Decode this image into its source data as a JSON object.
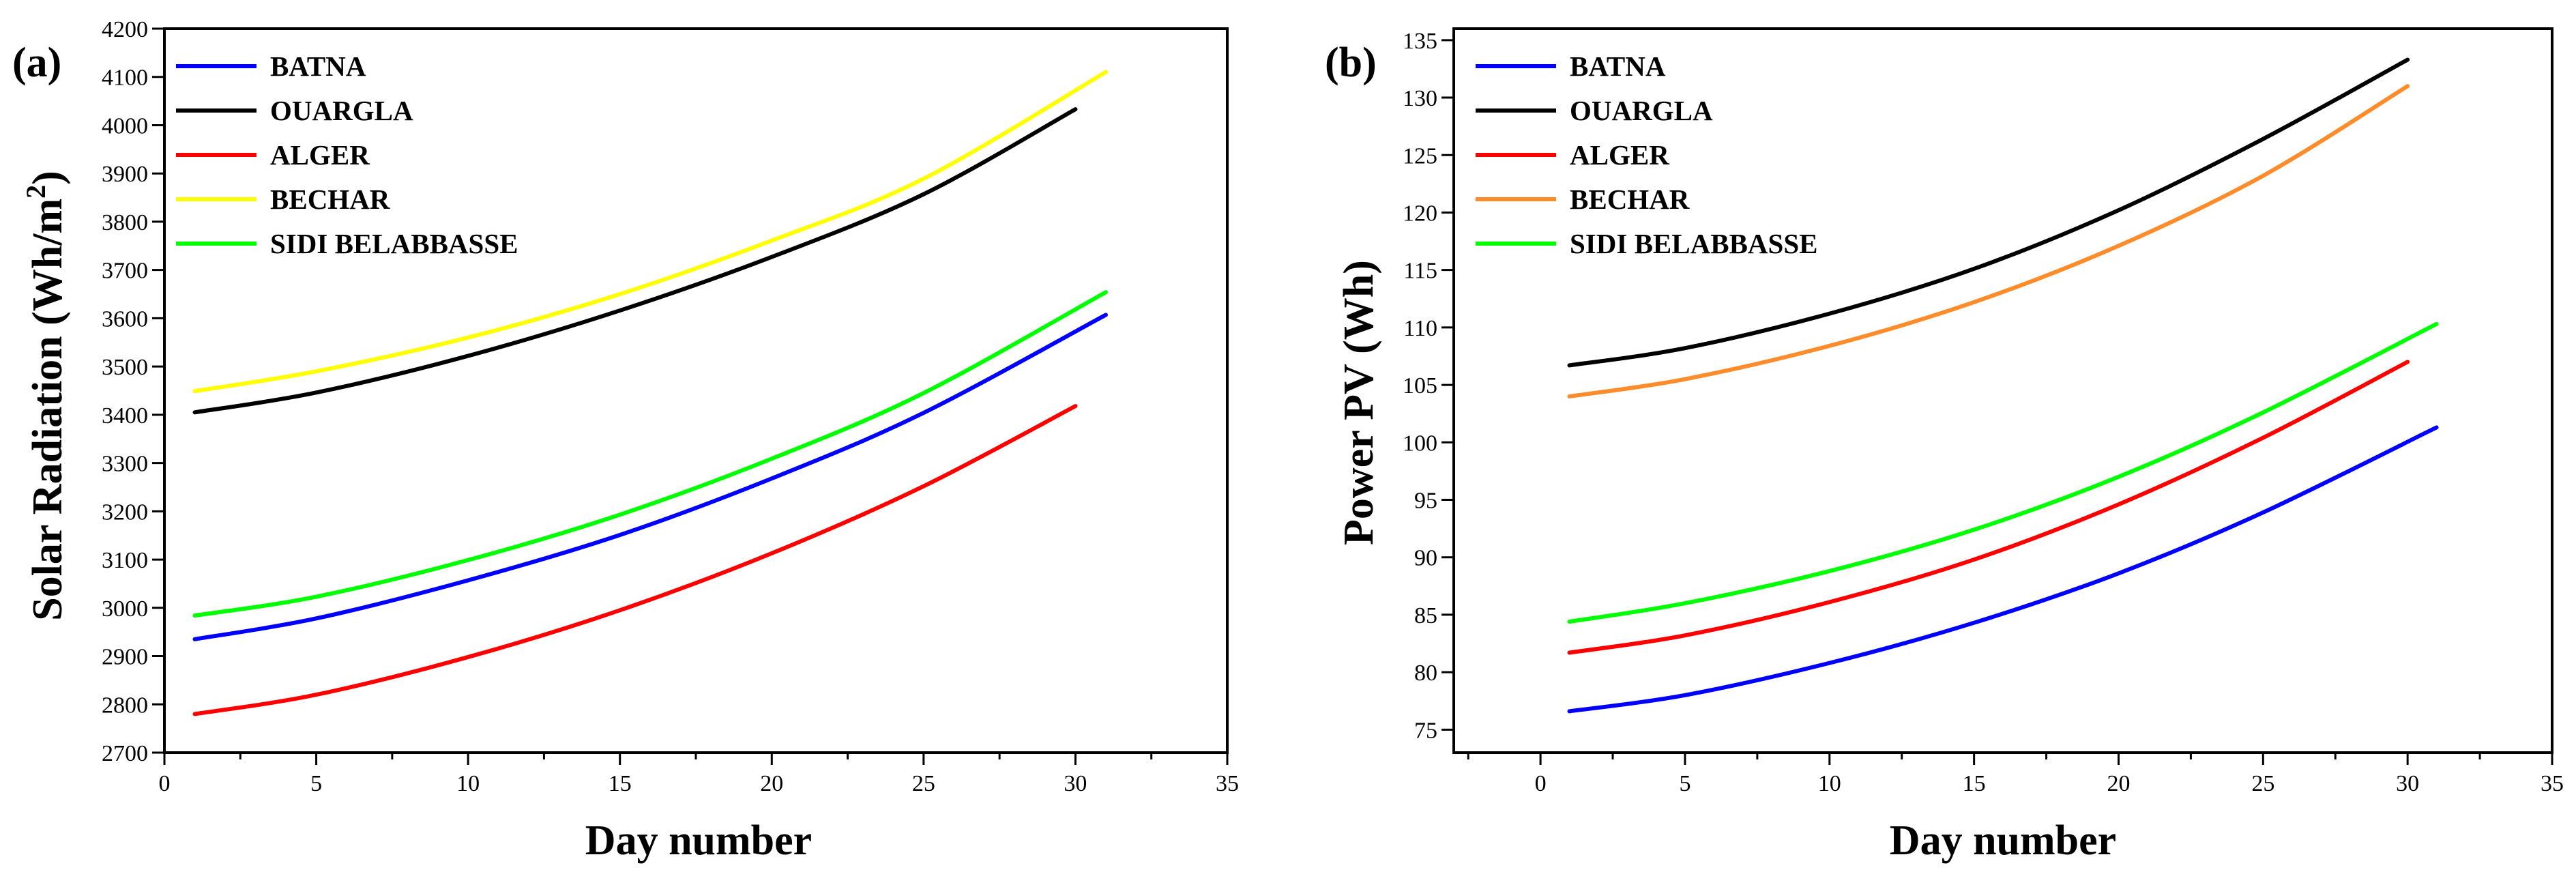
{
  "chart_data": [
    {
      "type": "line",
      "panel_label": "(a)",
      "title": "",
      "xlabel": "Day number",
      "ylabel_main": "Solar Radiation (Wh/m",
      "ylabel_sup": "2",
      "ylabel_close": ")",
      "xlim": [
        0,
        35
      ],
      "ylim": [
        2700,
        4200
      ],
      "xticks": [
        0,
        5,
        10,
        15,
        20,
        25,
        30,
        35
      ],
      "yticks": [
        2700,
        2800,
        2900,
        3000,
        3100,
        3200,
        3300,
        3400,
        3500,
        3600,
        3700,
        3800,
        3900,
        4000,
        4100,
        4200
      ],
      "legend_position": "top-left",
      "grid": false,
      "series": [
        {
          "name": "BATNA",
          "color": "#0000ff",
          "x": [
            1,
            5,
            10,
            15,
            20,
            25,
            31
          ],
          "values": [
            2935,
            2978,
            3057,
            3151,
            3268,
            3404,
            3607
          ]
        },
        {
          "name": "OUARGLA",
          "color": "#000000",
          "x": [
            1,
            5,
            10,
            15,
            20,
            25,
            30
          ],
          "values": [
            3405,
            3446,
            3522,
            3616,
            3727,
            3857,
            4033
          ]
        },
        {
          "name": "ALGER",
          "color": "#ff0000",
          "x": [
            1,
            5,
            10,
            15,
            20,
            25,
            30
          ],
          "values": [
            2780,
            2820,
            2898,
            2995,
            3113,
            3252,
            3418
          ]
        },
        {
          "name": "BECHAR",
          "color": "#ffff00",
          "x": [
            1,
            5,
            10,
            15,
            20,
            25,
            31
          ],
          "values": [
            3449,
            3490,
            3560,
            3650,
            3761,
            3889,
            4110
          ]
        },
        {
          "name": "SIDI BELABBASSE",
          "color": "#00ff00",
          "x": [
            1,
            5,
            10,
            15,
            20,
            25,
            31
          ],
          "values": [
            2984,
            3023,
            3099,
            3193,
            3309,
            3445,
            3654
          ]
        }
      ]
    },
    {
      "type": "line",
      "panel_label": "(b)",
      "title": "",
      "xlabel": "Day number",
      "ylabel": "Power PV (Wh)",
      "xlim": [
        -3,
        35
      ],
      "ylim": [
        73,
        136
      ],
      "xticks": [
        0,
        5,
        10,
        15,
        20,
        25,
        30,
        35
      ],
      "yticks": [
        75,
        80,
        85,
        90,
        95,
        100,
        105,
        110,
        115,
        120,
        125,
        130,
        135
      ],
      "legend_position": "top-left",
      "grid": false,
      "series": [
        {
          "name": "BATNA",
          "color": "#0000ff",
          "x": [
            1,
            5,
            10,
            15,
            20,
            25,
            31
          ],
          "values": [
            76.6,
            78.0,
            80.8,
            84.3,
            88.6,
            93.9,
            101.3
          ]
        },
        {
          "name": "OUARGLA",
          "color": "#000000",
          "x": [
            1,
            5,
            10,
            15,
            20,
            25,
            30
          ],
          "values": [
            106.7,
            108.2,
            111.2,
            115.1,
            120.2,
            126.4,
            133.3
          ]
        },
        {
          "name": "ALGER",
          "color": "#ff0000",
          "x": [
            1,
            5,
            10,
            15,
            20,
            25,
            30
          ],
          "values": [
            81.7,
            83.2,
            86.1,
            89.8,
            94.6,
            100.4,
            107.0
          ]
        },
        {
          "name": "BECHAR",
          "color": "#ff8c2a",
          "x": [
            1,
            5,
            10,
            15,
            20,
            25,
            30
          ],
          "values": [
            104.0,
            105.5,
            108.4,
            112.2,
            117.1,
            123.2,
            131.0
          ]
        },
        {
          "name": "SIDI BELABBASSE",
          "color": "#00ff00",
          "x": [
            1,
            5,
            10,
            15,
            20,
            25,
            31
          ],
          "values": [
            84.4,
            86.0,
            88.8,
            92.4,
            97.0,
            102.6,
            110.3
          ]
        }
      ]
    }
  ]
}
